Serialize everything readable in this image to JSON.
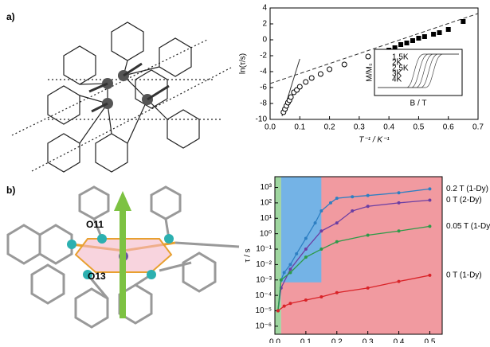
{
  "panels": [
    {
      "label": "a)"
    },
    {
      "label": "b)",
      "atom_labels": [
        "O11",
        "O13"
      ]
    }
  ],
  "chart_data": [
    {
      "type": "scatter",
      "y_label": "ln(τ/s)",
      "x_label": "T⁻¹ / K⁻¹",
      "xlim": [
        0,
        0.7
      ],
      "xticks": [
        {
          "value": 0,
          "label": "0.0"
        },
        0.1,
        0.2,
        0.3,
        0.4,
        0.5,
        0.6,
        0.7
      ],
      "ylim": [
        -10,
        4
      ],
      "yticks": [
        -10,
        -8,
        -6,
        -4,
        -2,
        0,
        2,
        4
      ],
      "series": [
        {
          "marker": "open-circle",
          "color": "#000000",
          "x": [
            0.045,
            0.05,
            0.055,
            0.06,
            0.065,
            0.07,
            0.08,
            0.09,
            0.1,
            0.12,
            0.14,
            0.17,
            0.2,
            0.25,
            0.33
          ],
          "values": [
            -9.1,
            -8.7,
            -8.3,
            -7.9,
            -7.6,
            -7.2,
            -6.6,
            -6.3,
            -5.9,
            -5.3,
            -4.8,
            -4.3,
            -3.7,
            -3.1,
            -2.1
          ]
        },
        {
          "marker": "filled-square",
          "color": "#000000",
          "x": [
            0.38,
            0.4,
            0.42,
            0.44,
            0.46,
            0.48,
            0.5,
            0.52,
            0.55,
            0.57,
            0.6,
            0.65
          ],
          "values": [
            -1.7,
            -1.3,
            -1.0,
            -0.6,
            -0.4,
            -0.1,
            0.2,
            0.4,
            0.7,
            0.9,
            1.3,
            2.3
          ]
        }
      ],
      "fits": [
        {
          "x": [
            0,
            0.7
          ],
          "values": [
            -5.5,
            3.3
          ],
          "dash": true
        },
        {
          "x": [
            0.04,
            0.1
          ],
          "values": [
            -9.6,
            -2.4
          ],
          "dash": false
        }
      ],
      "inset": {
        "x_label": "B / T",
        "y_label": "M/Mₛ",
        "legend": [
          "1.5K",
          "2K",
          "2.5K",
          "3K",
          "4K"
        ]
      }
    },
    {
      "type": "line",
      "y_label": "τ / s",
      "x_label": "T⁻¹ / K⁻¹",
      "log_y": true,
      "xlim": [
        0,
        0.54
      ],
      "xticks": [
        {
          "value": 0,
          "label": "0.0"
        },
        0.1,
        0.2,
        0.3,
        0.4,
        0.5
      ],
      "ylim": [
        3e-07,
        5000
      ],
      "yticks": [
        {
          "value": 1e-06,
          "label": "10⁻⁶"
        },
        {
          "value": 1e-05,
          "label": "10⁻⁵"
        },
        {
          "value": 0.0001,
          "label": "10⁻⁴"
        },
        {
          "value": 0.001,
          "label": "10⁻³"
        },
        {
          "value": 0.01,
          "label": "10⁻²"
        },
        {
          "value": 0.1,
          "label": "10⁻¹"
        },
        {
          "value": 1,
          "label": "10⁰"
        },
        {
          "value": 10,
          "label": "10¹"
        },
        {
          "value": 100,
          "label": "10²"
        },
        {
          "value": 1000,
          "label": "10³"
        }
      ],
      "regions": [
        {
          "x": [
            0,
            0.02
          ],
          "color": "#9fd6a0"
        },
        {
          "x": [
            0.02,
            0.15
          ],
          "color": "#74b3e6",
          "y_from": 0.0007
        },
        {
          "x": [
            0.02,
            0.54
          ],
          "color": "#f19aa0"
        }
      ],
      "series": [
        {
          "name": "0.2 T (1-Dy)",
          "color": "#2e7fc2",
          "x": [
            0.01,
            0.02,
            0.03,
            0.05,
            0.07,
            0.1,
            0.13,
            0.15,
            0.18,
            0.2,
            0.25,
            0.3,
            0.4,
            0.5
          ],
          "values": [
            1e-05,
            0.001,
            0.003,
            0.01,
            0.05,
            0.5,
            5,
            30,
            100,
            200,
            250,
            300,
            450,
            800
          ]
        },
        {
          "name": "0 T (2-Dy)",
          "color": "#6b3ea3",
          "x": [
            0.01,
            0.02,
            0.05,
            0.1,
            0.15,
            0.2,
            0.25,
            0.3,
            0.4,
            0.5
          ],
          "values": [
            1e-05,
            0.0003,
            0.005,
            0.1,
            1.5,
            5,
            30,
            60,
            100,
            150
          ]
        },
        {
          "name": "0.05 T (1-Dy)",
          "color": "#2d9a48",
          "x": [
            0.01,
            0.02,
            0.05,
            0.1,
            0.15,
            0.2,
            0.3,
            0.4,
            0.5
          ],
          "values": [
            1e-05,
            0.001,
            0.003,
            0.03,
            0.1,
            0.3,
            0.8,
            1.5,
            3
          ]
        },
        {
          "name": "0 T (1-Dy)",
          "color": "#d92328",
          "x": [
            0.01,
            0.03,
            0.05,
            0.1,
            0.15,
            0.2,
            0.3,
            0.4,
            0.5
          ],
          "values": [
            1e-05,
            2e-05,
            3e-05,
            5e-05,
            8e-05,
            0.00015,
            0.0003,
            0.0008,
            0.002
          ]
        }
      ]
    }
  ]
}
